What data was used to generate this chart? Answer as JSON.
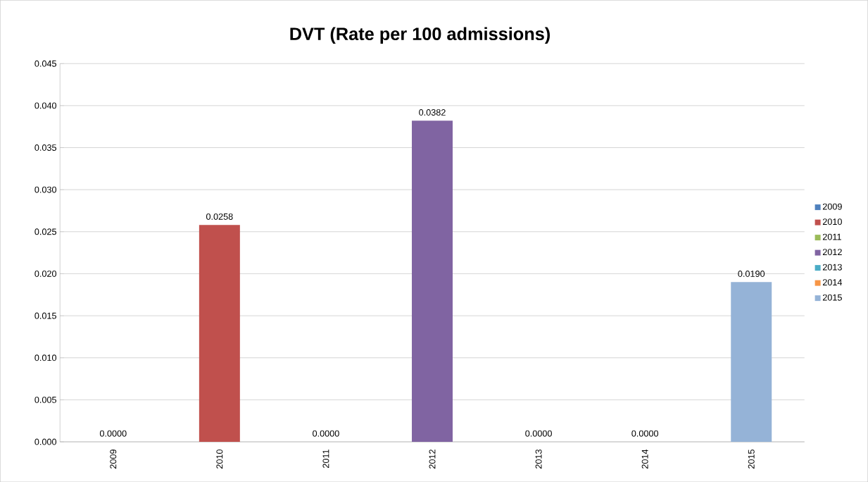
{
  "chart_data": {
    "type": "bar",
    "title": "DVT (Rate per 100 admissions)",
    "categories": [
      "2009",
      "2010",
      "2011",
      "2012",
      "2013",
      "2014",
      "2015"
    ],
    "series": [
      {
        "name": "2009",
        "color": "#4f81bd",
        "values": [
          0,
          null,
          null,
          null,
          null,
          null,
          null
        ],
        "value_labels": [
          "0.0000",
          null,
          null,
          null,
          null,
          null,
          null
        ]
      },
      {
        "name": "2010",
        "color": "#c0504d",
        "values": [
          null,
          0.0258,
          null,
          null,
          null,
          null,
          null
        ],
        "value_labels": [
          null,
          "0.0258",
          null,
          null,
          null,
          null,
          null
        ]
      },
      {
        "name": "2011",
        "color": "#9bbb59",
        "values": [
          null,
          null,
          0,
          null,
          null,
          null,
          null
        ],
        "value_labels": [
          null,
          null,
          "0.0000",
          null,
          null,
          null,
          null
        ]
      },
      {
        "name": "2012",
        "color": "#8064a2",
        "values": [
          null,
          null,
          null,
          0.0382,
          null,
          null,
          null
        ],
        "value_labels": [
          null,
          null,
          null,
          "0.0382",
          null,
          null,
          null
        ]
      },
      {
        "name": "2013",
        "color": "#4bacc6",
        "values": [
          null,
          null,
          null,
          null,
          0,
          null,
          null
        ],
        "value_labels": [
          null,
          null,
          null,
          null,
          "0.0000",
          null,
          null
        ]
      },
      {
        "name": "2014",
        "color": "#f79646",
        "values": [
          null,
          null,
          null,
          null,
          null,
          0,
          null
        ],
        "value_labels": [
          null,
          null,
          null,
          null,
          null,
          "0.0000",
          null
        ]
      },
      {
        "name": "2015",
        "color": "#95b3d7",
        "values": [
          null,
          null,
          null,
          null,
          null,
          null,
          0.019
        ],
        "value_labels": [
          null,
          null,
          null,
          null,
          null,
          null,
          "0.0190"
        ]
      }
    ],
    "ylim": [
      0,
      0.045
    ],
    "yticks": [
      {
        "value": 0,
        "label": "0.000"
      },
      0.005,
      {
        "value": 0.01,
        "label": "0.010"
      },
      0.015,
      {
        "value": 0.02,
        "label": "0.020"
      },
      0.025,
      {
        "value": 0.03,
        "label": "0.030"
      },
      0.035,
      {
        "value": 0.04,
        "label": "0.040"
      },
      0.045
    ],
    "grid": "y",
    "legend": "right"
  }
}
